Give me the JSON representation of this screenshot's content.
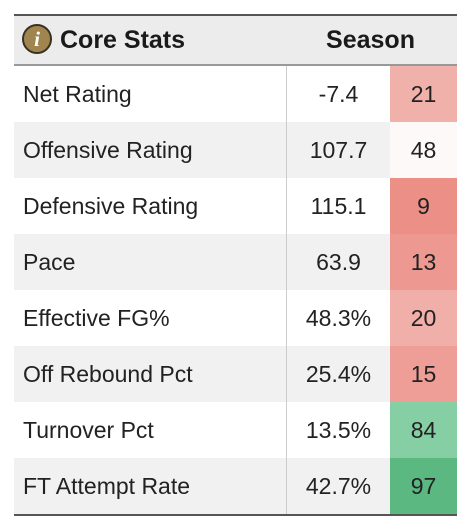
{
  "header": {
    "title": "Core Stats",
    "season_label": "Season",
    "info_icon": "info-icon"
  },
  "rows": [
    {
      "label": "Net Rating",
      "value": "-7.4",
      "rank": "21",
      "rank_color": "#f0b1aa"
    },
    {
      "label": "Offensive Rating",
      "value": "107.7",
      "rank": "48",
      "rank_color": "#fdf9f9"
    },
    {
      "label": "Defensive Rating",
      "value": "115.1",
      "rank": "9",
      "rank_color": "#eb8f87"
    },
    {
      "label": "Pace",
      "value": "63.9",
      "rank": "13",
      "rank_color": "#ed9891"
    },
    {
      "label": "Effective FG%",
      "value": "48.3%",
      "rank": "20",
      "rank_color": "#f0afa8"
    },
    {
      "label": "Off Rebound Pct",
      "value": "25.4%",
      "rank": "15",
      "rank_color": "#ee9e97"
    },
    {
      "label": "Turnover Pct",
      "value": "13.5%",
      "rank": "84",
      "rank_color": "#86cfa4"
    },
    {
      "label": "FT Attempt Rate",
      "value": "42.7%",
      "rank": "97",
      "rank_color": "#5cb881"
    }
  ]
}
